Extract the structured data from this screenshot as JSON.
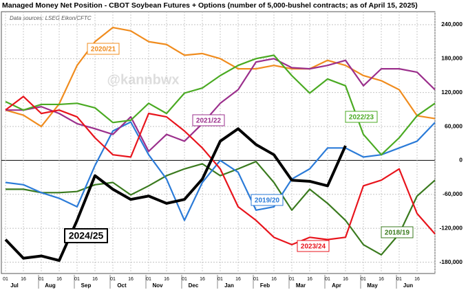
{
  "chart_data": {
    "type": "line",
    "title": "Managed Money Net Position - CBOT Soybean Futures + Options (number of 5,000-bushel contracts; as of April 15, 2025)",
    "subtitle": "Data sources: LSEG Eikon/CFTC",
    "annotation": "@kannbwx",
    "categories": [
      "01",
      "16",
      "01",
      "16",
      "01",
      "16",
      "01",
      "16",
      "01",
      "16",
      "01",
      "16",
      "01",
      "16",
      "01",
      "16",
      "01",
      "16",
      "01",
      "16",
      "01",
      "16",
      "01",
      "16",
      null
    ],
    "months": [
      "Jul",
      "Aug",
      "Sep",
      "Oct",
      "Nov",
      "Dec",
      "Jan",
      "Feb",
      "Mar",
      "Apr",
      "May",
      "Jun"
    ],
    "ylim": [
      -200000,
      263000
    ],
    "yticks": [
      {
        "value": -180000,
        "label": "-180,000"
      },
      {
        "value": -120000,
        "label": "-120,000"
      },
      {
        "value": -60000,
        "label": "-60,000"
      },
      0,
      {
        "value": 60000,
        "label": "60,000"
      },
      {
        "value": 120000,
        "label": "120,000"
      },
      {
        "value": 180000,
        "label": "180,000"
      },
      {
        "value": 240000,
        "label": "240,000"
      }
    ],
    "grid": true,
    "series": [
      {
        "name": "2018/19",
        "color": "#3a7a1e",
        "values": [
          -51000,
          -51000,
          -57000,
          -57000,
          -55000,
          -43000,
          -39000,
          -61000,
          -45000,
          -27000,
          -15000,
          -6000,
          -27000,
          -15000,
          -2000,
          -39000,
          -88000,
          -51000,
          -76000,
          -106000,
          -149000,
          -167000,
          -130000,
          -63000,
          -35000
        ]
      },
      {
        "name": "2019/20",
        "color": "#2b7bd8",
        "values": [
          -39000,
          -43000,
          -57000,
          -67000,
          -82000,
          -9000,
          52000,
          68000,
          10000,
          -33000,
          -106000,
          -39000,
          0,
          -21000,
          -88000,
          -82000,
          -33000,
          -15000,
          22000,
          22000,
          6000,
          10000,
          22000,
          34000,
          67000
        ]
      },
      {
        "name": "2020/21",
        "color": "#f08c1e",
        "values": [
          89000,
          80000,
          60000,
          100000,
          168000,
          210000,
          235000,
          229000,
          210000,
          205000,
          186000,
          189000,
          180000,
          162000,
          162000,
          168000,
          162000,
          162000,
          177000,
          168000,
          150000,
          141000,
          125000,
          79000,
          74000
        ]
      },
      {
        "name": "2021/22",
        "color": "#9b2f8c",
        "values": [
          89000,
          89000,
          95000,
          83000,
          65000,
          56000,
          46000,
          77000,
          16000,
          46000,
          34000,
          65000,
          101000,
          125000,
          174000,
          180000,
          164000,
          162000,
          168000,
          177000,
          132000,
          162000,
          162000,
          156000,
          125000
        ]
      },
      {
        "name": "2022/23",
        "color": "#4aaa22",
        "values": [
          104000,
          89000,
          99000,
          99000,
          101000,
          93000,
          67000,
          71000,
          101000,
          83000,
          119000,
          128000,
          150000,
          168000,
          180000,
          186000,
          150000,
          119000,
          144000,
          132000,
          46000,
          10000,
          40000,
          79000,
          101000
        ]
      },
      {
        "name": "2023/24",
        "color": "#e8141c",
        "values": [
          89000,
          113000,
          83000,
          89000,
          77000,
          40000,
          10000,
          6000,
          83000,
          77000,
          52000,
          22000,
          -15000,
          -82000,
          -106000,
          -136000,
          -149000,
          -136000,
          -140000,
          -136000,
          -45000,
          -35000,
          -15000,
          -94000,
          -130000
        ]
      },
      {
        "name": "2024/25",
        "color": "#000000",
        "values": [
          -140000,
          -173000,
          -169000,
          -177000,
          -106000,
          -27000,
          -51000,
          -69000,
          -63000,
          -76000,
          -69000,
          -33000,
          34000,
          56000,
          28000,
          10000,
          -35000,
          -37000,
          -45000,
          26000,
          null,
          null,
          null,
          null,
          null
        ]
      }
    ]
  }
}
